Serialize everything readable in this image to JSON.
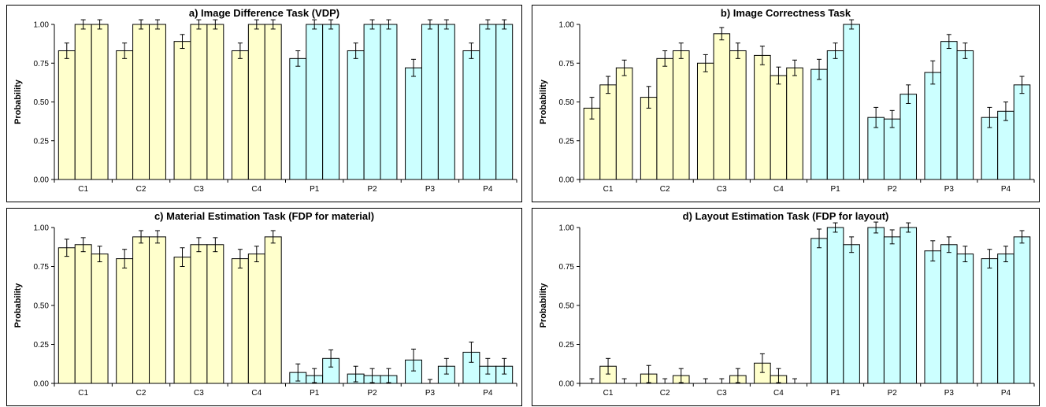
{
  "colors": {
    "control": "#ffffcc",
    "experimental": "#ccffff",
    "edge": "#000000"
  },
  "chart_data": [
    {
      "type": "bar",
      "title": "a) Image Difference Task (VDP)",
      "ylabel": "Probability",
      "ylim": [
        0,
        1
      ],
      "yticks": [
        "0.00",
        "0.25",
        "0.50",
        "0.75",
        "1.00"
      ],
      "categories": [
        "C1",
        "C2",
        "C3",
        "C4",
        "P1",
        "P2",
        "P3",
        "P4"
      ],
      "values": [
        [
          0.83,
          1.0,
          1.0
        ],
        [
          0.83,
          1.0,
          1.0
        ],
        [
          0.89,
          1.0,
          1.0
        ],
        [
          0.83,
          1.0,
          1.0
        ],
        [
          0.78,
          1.0,
          1.0
        ],
        [
          0.83,
          1.0,
          1.0
        ],
        [
          0.72,
          1.0,
          1.0
        ],
        [
          0.83,
          1.0,
          1.0
        ]
      ],
      "errors": [
        [
          0.05,
          0.03,
          0.03
        ],
        [
          0.05,
          0.03,
          0.03
        ],
        [
          0.045,
          0.03,
          0.03
        ],
        [
          0.05,
          0.03,
          0.03
        ],
        [
          0.05,
          0.03,
          0.03
        ],
        [
          0.05,
          0.03,
          0.03
        ],
        [
          0.055,
          0.03,
          0.03
        ],
        [
          0.05,
          0.03,
          0.03
        ]
      ]
    },
    {
      "type": "bar",
      "title": "b) Image Correctness Task",
      "ylabel": "Probability",
      "ylim": [
        0,
        1
      ],
      "yticks": [
        "0.00",
        "0.25",
        "0.50",
        "0.75",
        "1.00"
      ],
      "categories": [
        "C1",
        "C2",
        "C3",
        "C4",
        "P1",
        "P2",
        "P3",
        "P4"
      ],
      "values": [
        [
          0.46,
          0.61,
          0.72
        ],
        [
          0.53,
          0.78,
          0.83
        ],
        [
          0.75,
          0.94,
          0.83
        ],
        [
          0.8,
          0.67,
          0.72
        ],
        [
          0.71,
          0.83,
          1.0
        ],
        [
          0.4,
          0.39,
          0.55
        ],
        [
          0.69,
          0.89,
          0.83
        ],
        [
          0.4,
          0.44,
          0.61
        ]
      ],
      "errors": [
        [
          0.07,
          0.055,
          0.05
        ],
        [
          0.07,
          0.05,
          0.05
        ],
        [
          0.055,
          0.04,
          0.05
        ],
        [
          0.06,
          0.055,
          0.05
        ],
        [
          0.065,
          0.05,
          0.03
        ],
        [
          0.065,
          0.055,
          0.06
        ],
        [
          0.075,
          0.045,
          0.05
        ],
        [
          0.065,
          0.06,
          0.055
        ]
      ]
    },
    {
      "type": "bar",
      "title": "c) Material Estimation Task (FDP for material)",
      "ylabel": "Probability",
      "ylim": [
        0,
        1
      ],
      "yticks": [
        "0.00",
        "0.25",
        "0.50",
        "0.75",
        "1.00"
      ],
      "categories": [
        "C1",
        "C2",
        "C3",
        "C4",
        "P1",
        "P2",
        "P3",
        "P4"
      ],
      "values": [
        [
          0.87,
          0.89,
          0.83
        ],
        [
          0.8,
          0.94,
          0.94
        ],
        [
          0.81,
          0.89,
          0.89
        ],
        [
          0.8,
          0.83,
          0.94
        ],
        [
          0.07,
          0.05,
          0.16
        ],
        [
          0.06,
          0.05,
          0.05
        ],
        [
          0.15,
          0.0,
          0.11
        ],
        [
          0.2,
          0.11,
          0.11
        ]
      ],
      "errors": [
        [
          0.055,
          0.045,
          0.05
        ],
        [
          0.06,
          0.04,
          0.04
        ],
        [
          0.06,
          0.045,
          0.045
        ],
        [
          0.06,
          0.05,
          0.04
        ],
        [
          0.055,
          0.045,
          0.055
        ],
        [
          0.05,
          0.045,
          0.045
        ],
        [
          0.07,
          0.025,
          0.05
        ],
        [
          0.065,
          0.05,
          0.05
        ]
      ]
    },
    {
      "type": "bar",
      "title": "d) Layout Estimation Task (FDP for layout)",
      "ylabel": "Probability",
      "ylim": [
        0,
        1
      ],
      "yticks": [
        "0.00",
        "0.25",
        "0.50",
        "0.75",
        "1.00"
      ],
      "categories": [
        "C1",
        "C2",
        "C3",
        "C4",
        "P1",
        "P2",
        "P3",
        "P4"
      ],
      "values": [
        [
          0.0,
          0.11,
          0.0
        ],
        [
          0.06,
          0.0,
          0.05
        ],
        [
          0.0,
          0.0,
          0.05
        ],
        [
          0.13,
          0.05,
          0.0
        ],
        [
          0.93,
          1.0,
          0.89
        ],
        [
          1.0,
          0.94,
          1.0
        ],
        [
          0.85,
          0.89,
          0.83
        ],
        [
          0.8,
          0.83,
          0.94
        ]
      ],
      "errors": [
        [
          0.03,
          0.05,
          0.03
        ],
        [
          0.055,
          0.03,
          0.045
        ],
        [
          0.03,
          0.03,
          0.045
        ],
        [
          0.06,
          0.045,
          0.03
        ],
        [
          0.06,
          0.03,
          0.05
        ],
        [
          0.035,
          0.045,
          0.03
        ],
        [
          0.065,
          0.05,
          0.05
        ],
        [
          0.06,
          0.05,
          0.04
        ]
      ]
    }
  ]
}
